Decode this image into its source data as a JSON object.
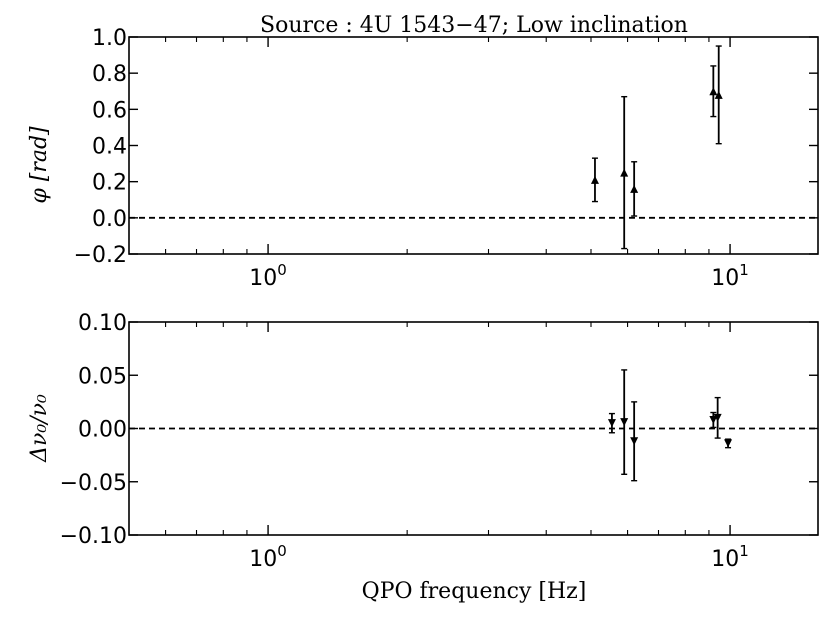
{
  "chart_data": [
    {
      "type": "scatter",
      "title": "Source : 4U 1543−47; Low inclination",
      "xlabel": "",
      "ylabel": "φ [rad]",
      "xscale": "log",
      "xlim": [
        0.5,
        15.5
      ],
      "ylim": [
        -0.2,
        1.0
      ],
      "yticks": [
        -0.2,
        0.0,
        0.2,
        0.4,
        0.6,
        0.8,
        1.0
      ],
      "ytick_labels": [
        "−0.2",
        "0.0",
        "0.2",
        "0.4",
        "0.6",
        "0.8",
        "1.0"
      ],
      "xticks": [
        1,
        10
      ],
      "xtick_labels": [
        {
          "base": "10",
          "exp": "0"
        },
        {
          "base": "10",
          "exp": "1"
        }
      ],
      "reference_line": {
        "y": 0.0,
        "style": "dashed"
      },
      "marker": "triangle-up",
      "color": "#000000",
      "points": [
        {
          "x": 5.1,
          "y": 0.21,
          "err": 0.12
        },
        {
          "x": 5.9,
          "y": 0.25,
          "err": 0.42
        },
        {
          "x": 6.2,
          "y": 0.16,
          "err": 0.15
        },
        {
          "x": 9.2,
          "y": 0.7,
          "err": 0.14
        },
        {
          "x": 9.45,
          "y": 0.68,
          "err": 0.27
        }
      ]
    },
    {
      "type": "scatter",
      "title": "",
      "xlabel": "QPO frequency [Hz]",
      "ylabel": "Δν₀/ν₀",
      "xscale": "log",
      "xlim": [
        0.5,
        15.5
      ],
      "ylim": [
        -0.1,
        0.1
      ],
      "yticks": [
        -0.1,
        -0.05,
        0.0,
        0.05,
        0.1
      ],
      "ytick_labels": [
        "−0.10",
        "−0.05",
        "0.00",
        "0.05",
        "0.10"
      ],
      "xticks": [
        1,
        10
      ],
      "xtick_labels": [
        {
          "base": "10",
          "exp": "0"
        },
        {
          "base": "10",
          "exp": "1"
        }
      ],
      "reference_line": {
        "y": 0.0,
        "style": "dashed"
      },
      "marker": "triangle-down",
      "color": "#000000",
      "points": [
        {
          "x": 5.55,
          "y": 0.005,
          "err": 0.009
        },
        {
          "x": 5.9,
          "y": 0.006,
          "err": 0.049
        },
        {
          "x": 6.2,
          "y": -0.012,
          "err": 0.037
        },
        {
          "x": 9.2,
          "y": 0.008,
          "err": 0.007
        },
        {
          "x": 9.4,
          "y": 0.01,
          "err": 0.019
        },
        {
          "x": 9.9,
          "y": -0.014,
          "err": 0.004
        }
      ]
    }
  ]
}
